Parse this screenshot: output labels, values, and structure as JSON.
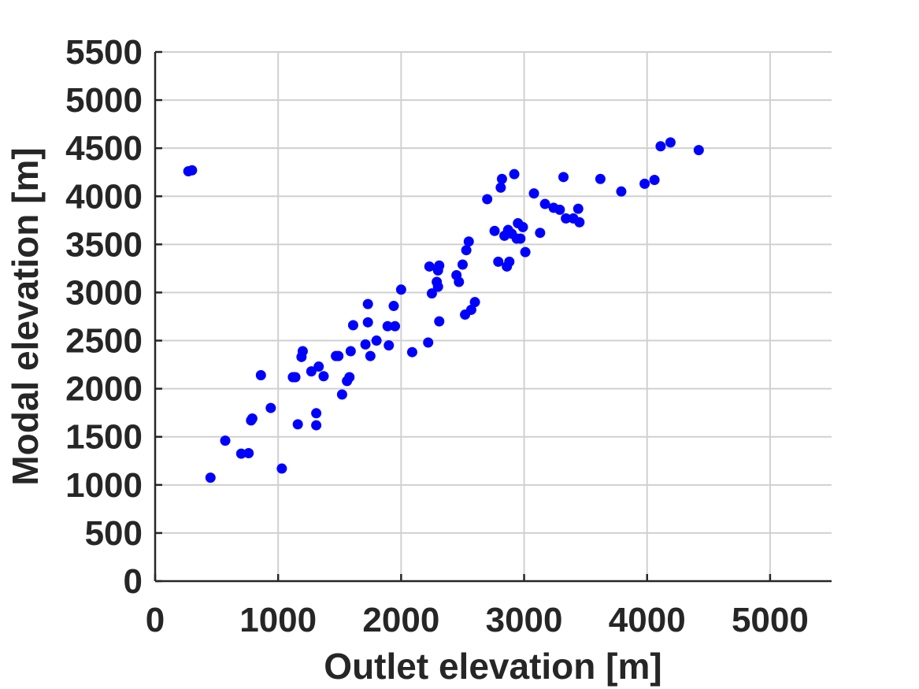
{
  "chart_data": {
    "type": "scatter",
    "title": "",
    "xlabel": "Outlet elevation [m]",
    "ylabel": "Modal elevation [m]",
    "xlim": [
      0,
      5500
    ],
    "ylim": [
      0,
      5500
    ],
    "xticks": [
      0,
      1000,
      2000,
      3000,
      4000,
      5000
    ],
    "yticks": [
      0,
      500,
      1000,
      1500,
      2000,
      2500,
      3000,
      3500,
      4000,
      4500,
      5000,
      5500
    ],
    "xtick_labels": [
      "0",
      "1000",
      "2000",
      "3000",
      "4000",
      "5000"
    ],
    "ytick_labels": [
      "0",
      "500",
      "1000",
      "1500",
      "2000",
      "2500",
      "3000",
      "3500",
      "4000",
      "4500",
      "5000",
      "5500"
    ],
    "grid": true,
    "marker_color": "#0000ff",
    "points": [
      [
        270,
        4260
      ],
      [
        300,
        4270
      ],
      [
        450,
        1075
      ],
      [
        570,
        1460
      ],
      [
        700,
        1325
      ],
      [
        760,
        1330
      ],
      [
        780,
        1670
      ],
      [
        790,
        1690
      ],
      [
        860,
        2140
      ],
      [
        940,
        1800
      ],
      [
        1030,
        1170
      ],
      [
        1120,
        2120
      ],
      [
        1140,
        2120
      ],
      [
        1160,
        1630
      ],
      [
        1190,
        2330
      ],
      [
        1200,
        2390
      ],
      [
        1270,
        2180
      ],
      [
        1310,
        1620
      ],
      [
        1310,
        1745
      ],
      [
        1330,
        2230
      ],
      [
        1370,
        2130
      ],
      [
        1470,
        2340
      ],
      [
        1490,
        2340
      ],
      [
        1520,
        1940
      ],
      [
        1560,
        2080
      ],
      [
        1580,
        2120
      ],
      [
        1590,
        2390
      ],
      [
        1610,
        2660
      ],
      [
        1710,
        2460
      ],
      [
        1730,
        2690
      ],
      [
        1730,
        2880
      ],
      [
        1750,
        2340
      ],
      [
        1800,
        2500
      ],
      [
        1890,
        2650
      ],
      [
        1900,
        2450
      ],
      [
        1940,
        2860
      ],
      [
        1950,
        2650
      ],
      [
        2000,
        3030
      ],
      [
        2090,
        2380
      ],
      [
        2220,
        2480
      ],
      [
        2230,
        3270
      ],
      [
        2250,
        2990
      ],
      [
        2290,
        3110
      ],
      [
        2300,
        3060
      ],
      [
        2310,
        3280
      ],
      [
        2310,
        2700
      ],
      [
        2300,
        3230
      ],
      [
        2450,
        3180
      ],
      [
        2470,
        3110
      ],
      [
        2500,
        3290
      ],
      [
        2520,
        2770
      ],
      [
        2530,
        3440
      ],
      [
        2550,
        3530
      ],
      [
        2570,
        2820
      ],
      [
        2600,
        2900
      ],
      [
        2700,
        3970
      ],
      [
        2760,
        3640
      ],
      [
        2790,
        3320
      ],
      [
        2810,
        4090
      ],
      [
        2820,
        4180
      ],
      [
        2840,
        3590
      ],
      [
        2860,
        3270
      ],
      [
        2870,
        3650
      ],
      [
        2880,
        3320
      ],
      [
        2900,
        3610
      ],
      [
        2920,
        4230
      ],
      [
        2940,
        3560
      ],
      [
        2950,
        3720
      ],
      [
        2970,
        3560
      ],
      [
        2990,
        3680
      ],
      [
        3010,
        3420
      ],
      [
        3080,
        4030
      ],
      [
        3130,
        3620
      ],
      [
        3170,
        3920
      ],
      [
        3240,
        3880
      ],
      [
        3290,
        3860
      ],
      [
        3320,
        4200
      ],
      [
        3340,
        3770
      ],
      [
        3400,
        3770
      ],
      [
        3440,
        3870
      ],
      [
        3450,
        3730
      ],
      [
        3620,
        4180
      ],
      [
        3790,
        4050
      ],
      [
        3980,
        4130
      ],
      [
        4060,
        4170
      ],
      [
        4110,
        4520
      ],
      [
        4190,
        4560
      ],
      [
        4420,
        4480
      ]
    ]
  }
}
